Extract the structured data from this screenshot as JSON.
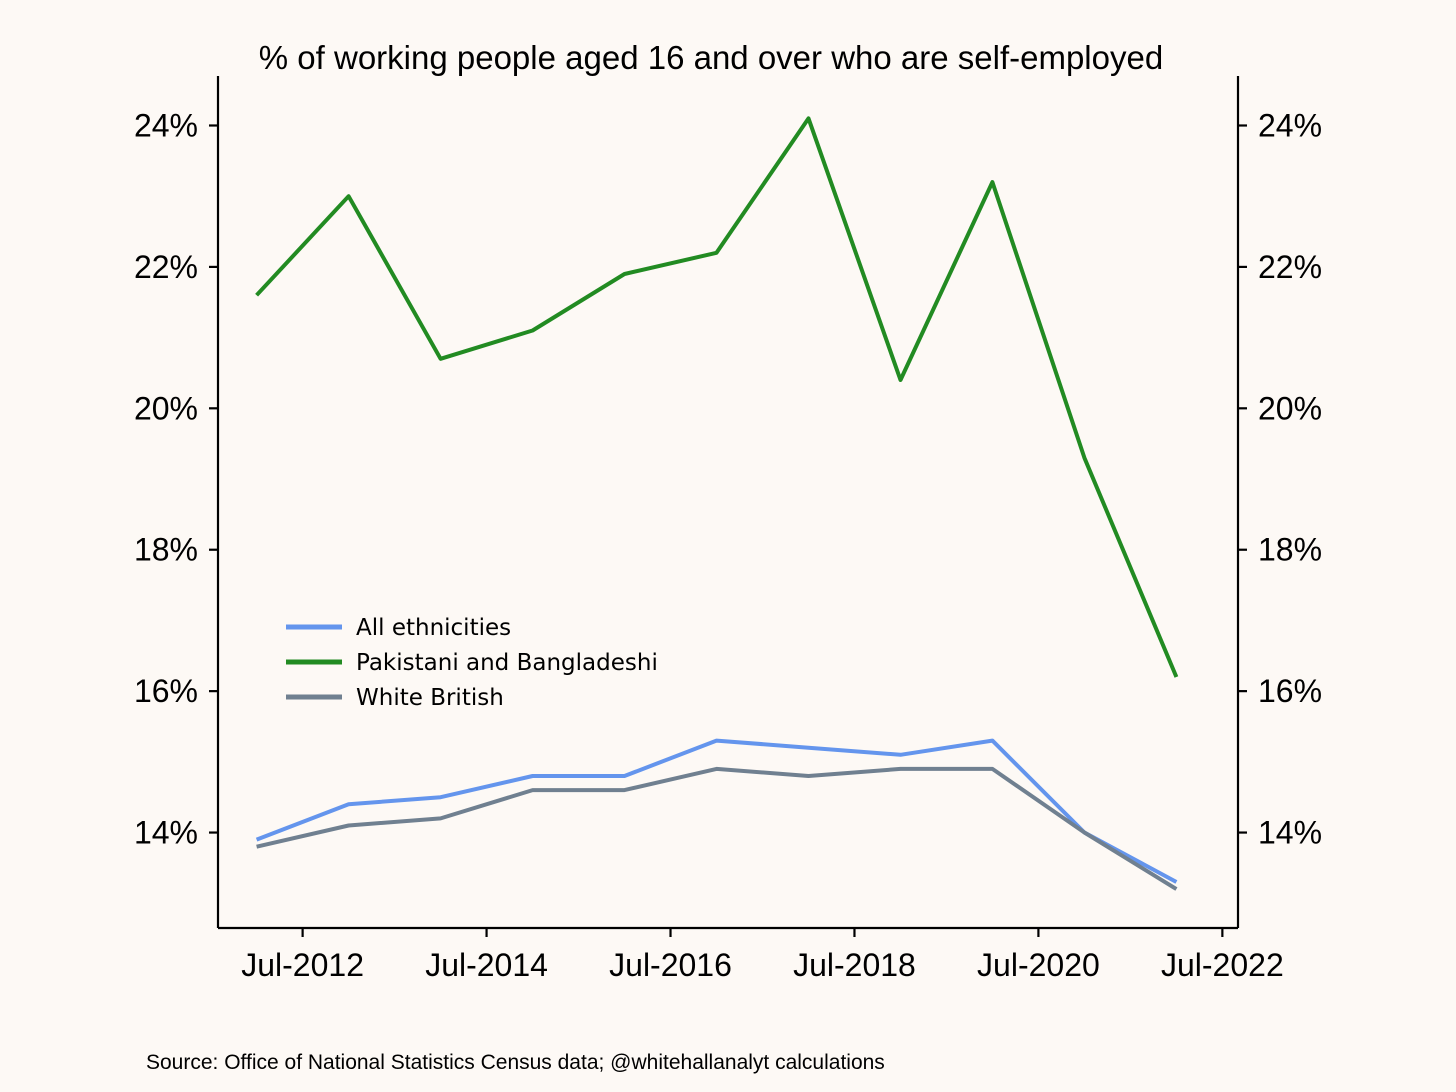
{
  "chart_data": {
    "type": "line",
    "title": "% of working people aged 16 and over who are self-employed",
    "xlabel": "",
    "ylabel": "",
    "x": [
      "Jan-2012",
      "Jan-2013",
      "Jan-2014",
      "Jan-2015",
      "Jan-2016",
      "Jan-2017",
      "Jan-2018",
      "Jan-2019",
      "Jan-2020",
      "Jan-2021",
      "Jan-2022"
    ],
    "x_numeric": [
      2012.0,
      2013.0,
      2014.0,
      2015.0,
      2016.0,
      2017.0,
      2018.0,
      2019.0,
      2020.0,
      2021.0,
      2022.0
    ],
    "xlim": [
      2011.58,
      2022.67
    ],
    "ylim": [
      12.65,
      24.7
    ],
    "x_ticks": [
      {
        "value": 2012.5,
        "label": "Jul-2012"
      },
      {
        "value": 2014.5,
        "label": "Jul-2014"
      },
      {
        "value": 2016.5,
        "label": "Jul-2016"
      },
      {
        "value": 2018.5,
        "label": "Jul-2018"
      },
      {
        "value": 2020.5,
        "label": "Jul-2020"
      },
      {
        "value": 2022.5,
        "label": "Jul-2022"
      }
    ],
    "y_ticks": [
      {
        "value": 14,
        "label": "14%"
      },
      {
        "value": 16,
        "label": "16%"
      },
      {
        "value": 18,
        "label": "18%"
      },
      {
        "value": 20,
        "label": "20%"
      },
      {
        "value": 22,
        "label": "22%"
      },
      {
        "value": 24,
        "label": "24%"
      }
    ],
    "series": [
      {
        "name": "All ethnicities",
        "color": "#6495ed",
        "values": [
          13.9,
          14.4,
          14.5,
          14.8,
          14.8,
          15.3,
          15.2,
          15.1,
          15.3,
          14.0,
          13.3
        ]
      },
      {
        "name": "Pakistani and Bangladeshi",
        "color": "#228b22",
        "values": [
          21.6,
          23.0,
          20.7,
          21.1,
          21.9,
          22.2,
          24.1,
          20.4,
          23.2,
          19.3,
          16.2
        ]
      },
      {
        "name": "White British",
        "color": "#708090",
        "values": [
          13.8,
          14.1,
          14.2,
          14.6,
          14.6,
          14.9,
          14.8,
          14.9,
          14.9,
          14.0,
          13.2
        ]
      }
    ],
    "legend_position": "center-left",
    "grid": false,
    "source": "Source: Office of National Statistics Census data; @whitehallanalyt calculations"
  }
}
